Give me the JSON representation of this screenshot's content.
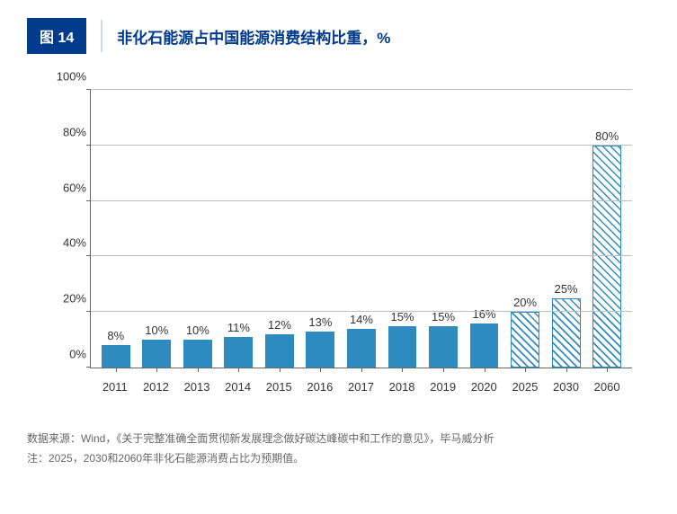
{
  "header": {
    "badge": "图 14",
    "title": "非化石能源占中国能源消费结构比重，%"
  },
  "chart": {
    "type": "bar",
    "ylim": [
      0,
      100
    ],
    "yticks": [
      0,
      20,
      40,
      60,
      80,
      100
    ],
    "ytick_labels": [
      "0%",
      "20%",
      "40%",
      "60%",
      "80%",
      "100%"
    ],
    "categories": [
      "2011",
      "2012",
      "2013",
      "2014",
      "2015",
      "2016",
      "2017",
      "2018",
      "2019",
      "2020",
      "2025",
      "2030",
      "2060"
    ],
    "values": [
      8,
      10,
      10,
      11,
      12,
      13,
      14,
      15,
      15,
      16,
      20,
      25,
      80
    ],
    "value_labels": [
      "8%",
      "10%",
      "10%",
      "11%",
      "12%",
      "13%",
      "14%",
      "15%",
      "15%",
      "16%",
      "20%",
      "25%",
      "80%"
    ],
    "bar_styles": [
      "solid",
      "solid",
      "solid",
      "solid",
      "solid",
      "solid",
      "solid",
      "solid",
      "solid",
      "solid",
      "hatched",
      "hatched",
      "hatched"
    ],
    "colors": {
      "solid_fill": "#2e8bc0",
      "hatched_stroke": "#2e8bc0",
      "grid": "#bfbfbf",
      "axis": "#666666",
      "text": "#333333",
      "title_color": "#003a8c",
      "badge_bg": "#003a8c",
      "background": "#ffffff"
    },
    "fontsize_axis": 13,
    "fontsize_label": 13,
    "fontsize_title": 17
  },
  "footer": {
    "source": "数据来源：Wind，《关于完整准确全面贯彻新发展理念做好碳达峰碳中和工作的意见》，毕马威分析",
    "note": "注：2025，2030和2060年非化石能源消费占比为预期值。"
  }
}
